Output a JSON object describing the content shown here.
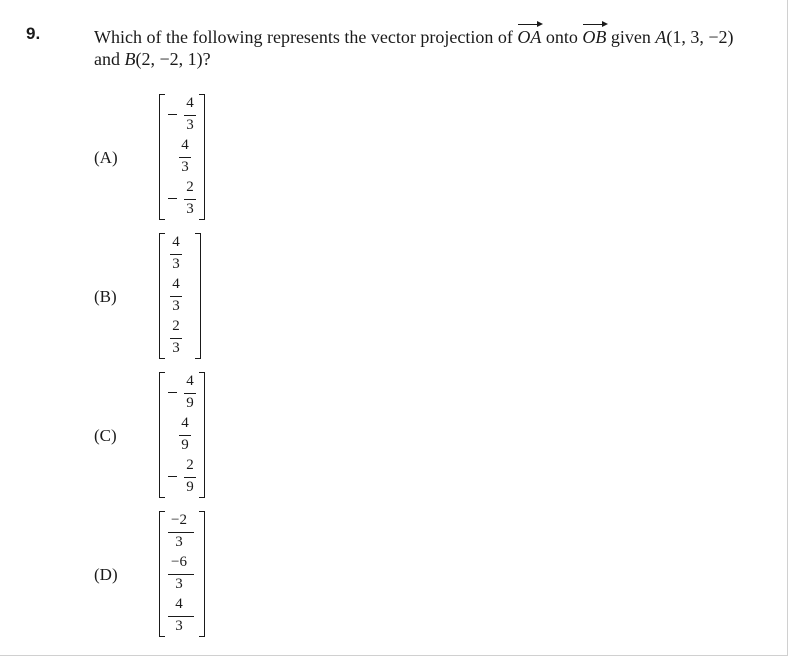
{
  "question": {
    "number": "9.",
    "line1_text": "Which of the following represents the vector projection of",
    "vec_oa": "OA",
    "onto": "onto",
    "vec_ob": "OB",
    "given": "given",
    "point_a_letter": "A",
    "point_a_coords": "(1, 3, −2)",
    "and": "and",
    "point_b_letter": "B",
    "point_b_coords": "(2, −2, 1)?"
  },
  "options": [
    {
      "label": "(A)",
      "entries": [
        {
          "sign": "−",
          "num": "4",
          "den": "3"
        },
        {
          "sign": "",
          "num": "4",
          "den": "3"
        },
        {
          "sign": "−",
          "num": "2",
          "den": "3"
        }
      ]
    },
    {
      "label": "(B)",
      "entries": [
        {
          "sign": "",
          "num": "4",
          "den": "3"
        },
        {
          "sign": "",
          "num": "4",
          "den": "3"
        },
        {
          "sign": "",
          "num": "2",
          "den": "3"
        }
      ]
    },
    {
      "label": "(C)",
      "entries": [
        {
          "sign": "−",
          "num": "4",
          "den": "9"
        },
        {
          "sign": "",
          "num": "4",
          "den": "9"
        },
        {
          "sign": "−",
          "num": "2",
          "den": "9"
        }
      ]
    },
    {
      "label": "(D)",
      "entries": [
        {
          "sign": "",
          "num": "−2",
          "den": "3"
        },
        {
          "sign": "",
          "num": "−6",
          "den": "3"
        },
        {
          "sign": "",
          "num": "4",
          "den": "3"
        }
      ]
    }
  ]
}
